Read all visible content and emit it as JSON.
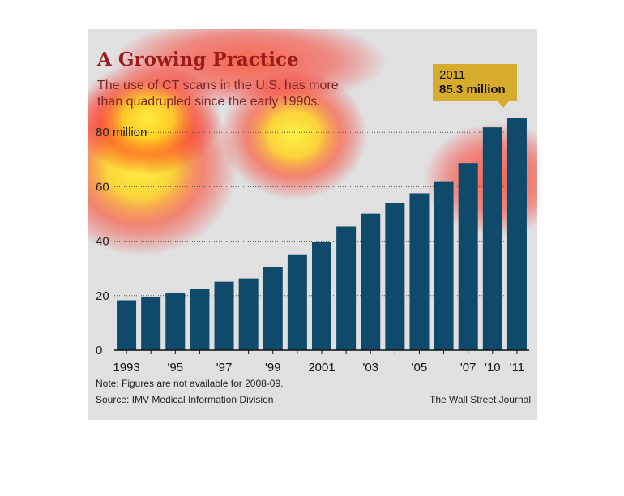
{
  "header": {
    "title": "A Growing Practice",
    "subtitle": "The use of CT scans in the U.S. has more than quadrupled since the early 1990s."
  },
  "callout": {
    "year": "2011",
    "value": "85.3 million"
  },
  "footer": {
    "note": "Note: Figures are not available for 2008-09.",
    "source": "Source: IMV Medical Information Division",
    "credit": "The Wall Street Journal"
  },
  "colors": {
    "bar": "#0f4a6b",
    "accent": "#d7ab2b",
    "title": "#9b1b1b"
  },
  "chart_data": {
    "type": "bar",
    "categories": [
      "1993",
      "1994",
      "1995",
      "1996",
      "1997",
      "1998",
      "1999",
      "2000",
      "2001",
      "2002",
      "2003",
      "2004",
      "2005",
      "2006",
      "2007",
      "2010",
      "2011"
    ],
    "values": [
      18.3,
      19.5,
      21.0,
      22.6,
      25.1,
      26.3,
      30.6,
      34.9,
      39.6,
      45.4,
      50.1,
      53.9,
      57.6,
      62.0,
      68.7,
      81.8,
      85.3
    ],
    "x_tick_labels": [
      "1993",
      "",
      "'95",
      "",
      "'97",
      "",
      "'99",
      "",
      "2001",
      "",
      "'03",
      "",
      "'05",
      "",
      "'07",
      "'10",
      "'11"
    ],
    "y_tick_labels": [
      "0",
      "20",
      "40",
      "60",
      "80 million"
    ],
    "y_ticks": [
      0,
      20,
      40,
      60,
      80
    ],
    "ylim": [
      0,
      90
    ],
    "grid": true,
    "annotation": "2011 85.3 million"
  }
}
